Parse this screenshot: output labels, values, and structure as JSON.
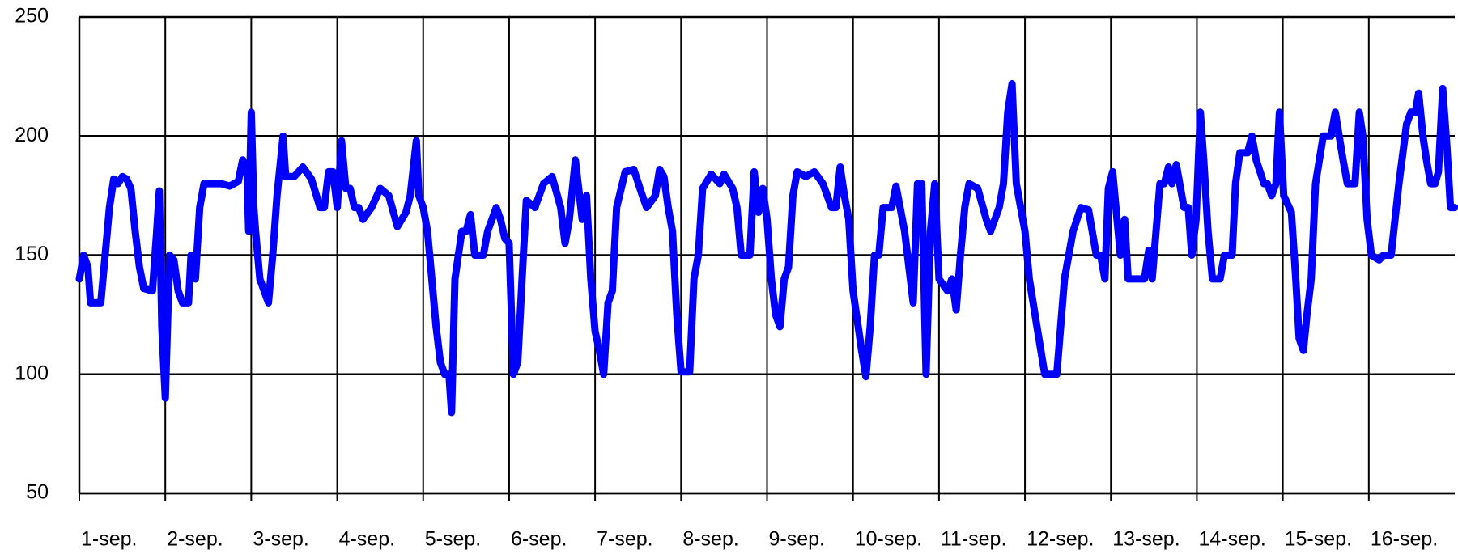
{
  "chart_data": {
    "type": "line",
    "xlim": [
      0,
      16
    ],
    "ylim": [
      50,
      250
    ],
    "xticks": [
      {
        "value": 0,
        "label": "1-sep."
      },
      {
        "value": 1,
        "label": "2-sep."
      },
      {
        "value": 2,
        "label": "3-sep."
      },
      {
        "value": 3,
        "label": "4-sep."
      },
      {
        "value": 4,
        "label": "5-sep."
      },
      {
        "value": 5,
        "label": "6-sep."
      },
      {
        "value": 6,
        "label": "7-sep."
      },
      {
        "value": 7,
        "label": "8-sep."
      },
      {
        "value": 8,
        "label": "9-sep."
      },
      {
        "value": 9,
        "label": "10-sep."
      },
      {
        "value": 10,
        "label": "11-sep."
      },
      {
        "value": 11,
        "label": "12-sep."
      },
      {
        "value": 12,
        "label": "13-sep."
      },
      {
        "value": 13,
        "label": "14-sep."
      },
      {
        "value": 14,
        "label": "15-sep."
      },
      {
        "value": 15,
        "label": "16-sep."
      }
    ],
    "yticks": [
      50,
      100,
      150,
      200,
      250
    ],
    "grid": true,
    "series": [
      {
        "color": "#0000ff",
        "x": [
          0,
          0.05,
          0.1,
          0.13,
          0.2,
          0.25,
          0.3,
          0.35,
          0.4,
          0.45,
          0.5,
          0.55,
          0.6,
          0.65,
          0.7,
          0.75,
          0.85,
          0.9,
          0.93,
          0.96,
          1.0,
          1.05,
          1.1,
          1.15,
          1.2,
          1.27,
          1.3,
          1.35,
          1.4,
          1.45,
          1.55,
          1.65,
          1.75,
          1.85,
          1.9,
          1.95,
          1.97,
          2.0,
          2.03,
          2.05,
          2.1,
          2.15,
          2.2,
          2.25,
          2.3,
          2.37,
          2.4,
          2.5,
          2.6,
          2.7,
          2.8,
          2.85,
          2.9,
          2.95,
          3.0,
          3.05,
          3.1,
          3.15,
          3.2,
          3.25,
          3.3,
          3.4,
          3.5,
          3.6,
          3.7,
          3.8,
          3.85,
          3.92,
          3.95,
          4.0,
          4.05,
          4.1,
          4.15,
          4.2,
          4.25,
          4.3,
          4.33,
          4.37,
          4.45,
          4.5,
          4.55,
          4.6,
          4.7,
          4.75,
          4.85,
          4.9,
          4.95,
          5.0,
          5.05,
          5.1,
          5.15,
          5.2,
          5.3,
          5.4,
          5.5,
          5.6,
          5.65,
          5.7,
          5.77,
          5.85,
          5.9,
          5.95,
          6.0,
          6.05,
          6.1,
          6.15,
          6.2,
          6.25,
          6.35,
          6.45,
          6.55,
          6.6,
          6.7,
          6.75,
          6.8,
          6.85,
          6.9,
          6.95,
          7.0,
          7.1,
          7.15,
          7.2,
          7.25,
          7.35,
          7.45,
          7.5,
          7.6,
          7.65,
          7.7,
          7.8,
          7.85,
          7.9,
          7.95,
          8.0,
          8.05,
          8.1,
          8.15,
          8.2,
          8.25,
          8.3,
          8.35,
          8.45,
          8.55,
          8.65,
          8.7,
          8.75,
          8.8,
          8.85,
          8.9,
          8.95,
          9.0,
          9.1,
          9.15,
          9.2,
          9.25,
          9.3,
          9.35,
          9.45,
          9.5,
          9.6,
          9.7,
          9.75,
          9.8,
          9.85,
          9.9,
          9.95,
          10.0,
          10.1,
          10.15,
          10.2,
          10.25,
          10.3,
          10.35,
          10.45,
          10.55,
          10.6,
          10.7,
          10.75,
          10.8,
          10.85,
          10.9,
          11.0,
          11.05,
          11.14,
          11.23,
          11.37,
          11.46,
          11.56,
          11.65,
          11.74,
          11.83,
          11.88,
          11.93,
          11.97,
          12.02,
          12.11,
          12.16,
          12.2,
          12.3,
          12.39,
          12.44,
          12.48,
          12.57,
          12.62,
          12.67,
          12.71,
          12.76,
          12.85,
          12.9,
          12.94,
          12.99,
          13.04,
          13.08,
          13.13,
          13.18,
          13.27,
          13.32,
          13.41,
          13.45,
          13.5,
          13.59,
          13.64,
          13.69,
          13.78,
          13.82,
          13.87,
          13.92,
          13.96,
          14.01,
          14.1,
          14.15,
          14.19,
          14.24,
          14.28,
          14.33,
          14.38,
          14.47,
          14.56,
          14.61,
          14.7,
          14.75,
          14.84,
          14.89,
          14.93,
          14.98,
          15.03,
          15.12,
          15.17,
          15.26,
          15.35,
          15.44,
          15.49,
          15.54,
          15.58,
          15.63,
          15.67,
          15.72,
          15.77,
          15.81,
          15.86,
          15.91,
          15.95,
          16.0
        ],
        "values": [
          140,
          150,
          145,
          130,
          130,
          130,
          150,
          170,
          182,
          180,
          183,
          182,
          178,
          160,
          145,
          136,
          135,
          160,
          177,
          120,
          90,
          150,
          148,
          135,
          130,
          130,
          150,
          140,
          170,
          180,
          180,
          180,
          179,
          181,
          190,
          185,
          160,
          210,
          170,
          160,
          140,
          135,
          130,
          150,
          175,
          200,
          183,
          183,
          187,
          182,
          170,
          170,
          185,
          185,
          170,
          198,
          178,
          178,
          170,
          170,
          165,
          170,
          178,
          175,
          162,
          168,
          175,
          198,
          175,
          170,
          160,
          140,
          120,
          105,
          100,
          100,
          84,
          140,
          160,
          160,
          167,
          150,
          150,
          160,
          170,
          165,
          157,
          155,
          100,
          105,
          140,
          173,
          170,
          180,
          183,
          170,
          155,
          165,
          190,
          165,
          175,
          140,
          118,
          110,
          100,
          130,
          135,
          170,
          185,
          186,
          175,
          170,
          175,
          186,
          183,
          170,
          160,
          125,
          101,
          101,
          140,
          150,
          178,
          184,
          180,
          184,
          178,
          170,
          150,
          150,
          185,
          168,
          178,
          165,
          140,
          125,
          120,
          140,
          145,
          175,
          185,
          183,
          185,
          180,
          175,
          170,
          170,
          187,
          175,
          165,
          135,
          110,
          99,
          120,
          150,
          150,
          170,
          170,
          179,
          160,
          130,
          180,
          180,
          100,
          160,
          180,
          140,
          135,
          140,
          127,
          150,
          170,
          180,
          178,
          165,
          160,
          170,
          180,
          210,
          222,
          180,
          160,
          140,
          120,
          100,
          100,
          140,
          160,
          170,
          169,
          150,
          150,
          140,
          178,
          185,
          150,
          165,
          140,
          140,
          140,
          152,
          140,
          180,
          180,
          187,
          180,
          188,
          170,
          170,
          150,
          165,
          210,
          190,
          160,
          140,
          140,
          150,
          150,
          180,
          193,
          193,
          200,
          190,
          180,
          180,
          175,
          180,
          210,
          175,
          168,
          140,
          115,
          110,
          125,
          140,
          180,
          200,
          200,
          210,
          190,
          180,
          180,
          210,
          200,
          165,
          150,
          148,
          150,
          150,
          180,
          205,
          210,
          210,
          218,
          200,
          190,
          180,
          180,
          185,
          220,
          195,
          170,
          170
        ]
      }
    ]
  }
}
